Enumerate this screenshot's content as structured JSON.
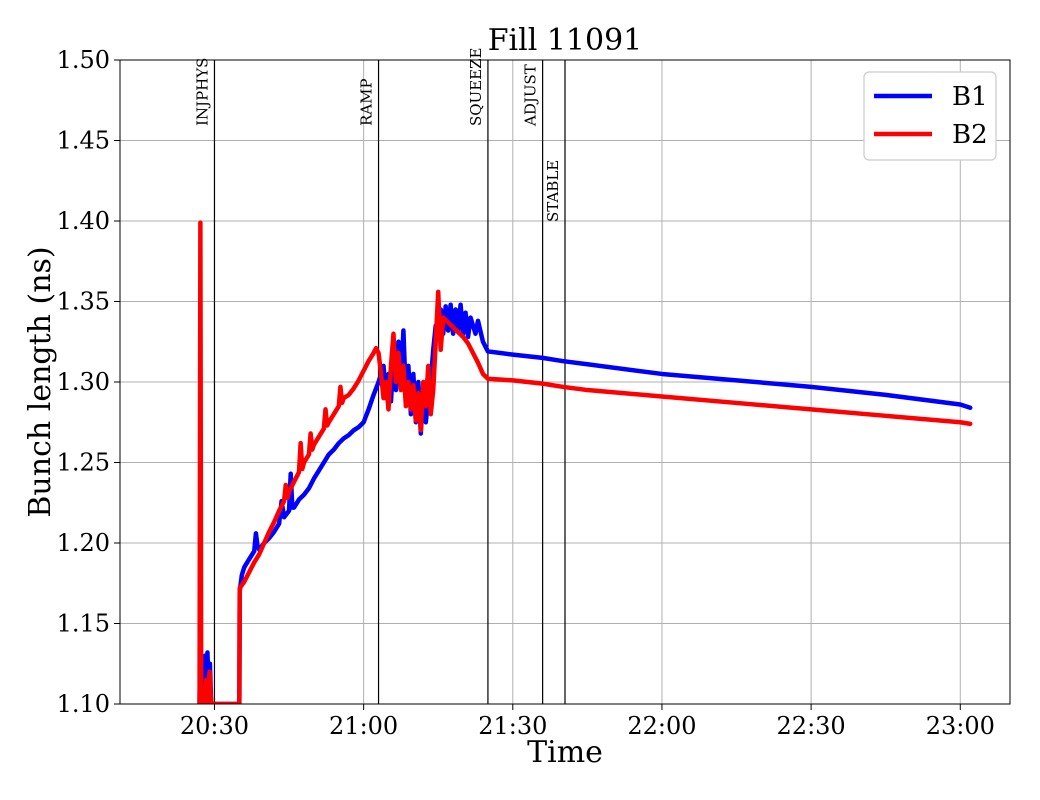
{
  "chart_data": {
    "type": "line",
    "title": "Fill 11091",
    "xlabel": "Time",
    "ylabel": "Bunch length (ns)",
    "ylim": [
      1.1,
      1.5
    ],
    "xlim": [
      "20:11",
      "23:10"
    ],
    "grid": true,
    "legend_position": "top-right",
    "x_ticks": [
      "20:30",
      "21:00",
      "21:30",
      "22:00",
      "22:30",
      "23:00"
    ],
    "y_ticks": [
      "1.10",
      "1.15",
      "1.20",
      "1.25",
      "1.30",
      "1.35",
      "1.40",
      "1.45",
      "1.50"
    ],
    "phase_markers": [
      {
        "label": "INJPHYS",
        "time": "20:30"
      },
      {
        "label": "RAMP",
        "time": "21:03"
      },
      {
        "label": "SQUEEZE",
        "time": "21:25"
      },
      {
        "label": "ADJUST",
        "time": "21:36"
      },
      {
        "label": "STABLE",
        "time": "21:40:30"
      }
    ],
    "series": [
      {
        "name": "B1",
        "color": "#0000ff",
        "points": [
          [
            "20:27:00",
            1.1
          ],
          [
            "20:27:05",
            1.12
          ],
          [
            "20:27:20",
            1.1
          ],
          [
            "20:27:35",
            1.125
          ],
          [
            "20:27:50",
            1.105
          ],
          [
            "20:28:05",
            1.13
          ],
          [
            "20:28:20",
            1.11
          ],
          [
            "20:28:35",
            1.132
          ],
          [
            "20:28:50",
            1.108
          ],
          [
            "20:29:05",
            1.125
          ],
          [
            "20:29:20",
            1.1
          ],
          [
            "20:29:30",
            1.1
          ],
          [
            "20:35:00",
            1.1
          ],
          [
            "20:35:05",
            1.17
          ],
          [
            "20:35:30",
            1.18
          ],
          [
            "20:36:00",
            1.185
          ],
          [
            "20:37:00",
            1.19
          ],
          [
            "20:38:00",
            1.195
          ],
          [
            "20:38:20",
            1.206
          ],
          [
            "20:38:40",
            1.198
          ],
          [
            "20:39:00",
            1.196
          ],
          [
            "20:40:00",
            1.2
          ],
          [
            "20:41:00",
            1.203
          ],
          [
            "20:42:00",
            1.207
          ],
          [
            "20:43:00",
            1.212
          ],
          [
            "20:43:30",
            1.226
          ],
          [
            "20:44:00",
            1.216
          ],
          [
            "20:45:00",
            1.22
          ],
          [
            "20:45:20",
            1.243
          ],
          [
            "20:45:40",
            1.222
          ],
          [
            "20:46:00",
            1.222
          ],
          [
            "20:47:00",
            1.227
          ],
          [
            "20:48:00",
            1.23
          ],
          [
            "20:49:00",
            1.234
          ],
          [
            "20:50:00",
            1.24
          ],
          [
            "20:51:00",
            1.245
          ],
          [
            "20:52:00",
            1.25
          ],
          [
            "20:53:00",
            1.255
          ],
          [
            "20:54:00",
            1.258
          ],
          [
            "20:55:00",
            1.262
          ],
          [
            "20:56:00",
            1.265
          ],
          [
            "20:57:00",
            1.267
          ],
          [
            "20:58:00",
            1.27
          ],
          [
            "20:59:00",
            1.272
          ],
          [
            "21:00:00",
            1.275
          ],
          [
            "21:01:00",
            1.283
          ],
          [
            "21:02:00",
            1.292
          ],
          [
            "21:03:00",
            1.3
          ],
          [
            "21:04:00",
            1.31
          ],
          [
            "21:04:30",
            1.29
          ],
          [
            "21:05:00",
            1.305
          ],
          [
            "21:05:30",
            1.288
          ],
          [
            "21:06:00",
            1.315
          ],
          [
            "21:06:30",
            1.295
          ],
          [
            "21:07:00",
            1.325
          ],
          [
            "21:07:30",
            1.298
          ],
          [
            "21:08:00",
            1.332
          ],
          [
            "21:08:30",
            1.29
          ],
          [
            "21:09:00",
            1.31
          ],
          [
            "21:09:30",
            1.28
          ],
          [
            "21:10:00",
            1.305
          ],
          [
            "21:10:30",
            1.275
          ],
          [
            "21:11:00",
            1.3
          ],
          [
            "21:11:30",
            1.268
          ],
          [
            "21:12:00",
            1.295
          ],
          [
            "21:12:30",
            1.275
          ],
          [
            "21:13:00",
            1.29
          ],
          [
            "21:13:30",
            1.3
          ],
          [
            "21:14:00",
            1.32
          ],
          [
            "21:14:30",
            1.335
          ],
          [
            "21:15:00",
            1.328
          ],
          [
            "21:15:30",
            1.345
          ],
          [
            "21:16:00",
            1.33
          ],
          [
            "21:16:30",
            1.347
          ],
          [
            "21:17:00",
            1.332
          ],
          [
            "21:17:30",
            1.348
          ],
          [
            "21:18:00",
            1.33
          ],
          [
            "21:18:30",
            1.345
          ],
          [
            "21:19:00",
            1.332
          ],
          [
            "21:19:30",
            1.348
          ],
          [
            "21:20:00",
            1.33
          ],
          [
            "21:20:30",
            1.343
          ],
          [
            "21:21:00",
            1.328
          ],
          [
            "21:21:30",
            1.34
          ],
          [
            "21:22:00",
            1.335
          ],
          [
            "21:22:30",
            1.33
          ],
          [
            "21:23:00",
            1.338
          ],
          [
            "21:24:00",
            1.325
          ],
          [
            "21:25:00",
            1.319
          ],
          [
            "21:30:00",
            1.317
          ],
          [
            "21:36:00",
            1.315
          ],
          [
            "21:40:00",
            1.313
          ],
          [
            "21:45:00",
            1.311
          ],
          [
            "22:00:00",
            1.305
          ],
          [
            "22:15:00",
            1.301
          ],
          [
            "22:30:00",
            1.297
          ],
          [
            "22:45:00",
            1.292
          ],
          [
            "23:00:00",
            1.286
          ],
          [
            "23:02:00",
            1.284
          ]
        ]
      },
      {
        "name": "B2",
        "color": "#ff0000",
        "points": [
          [
            "20:27:00",
            1.1
          ],
          [
            "20:27:10",
            1.399
          ],
          [
            "20:27:20",
            1.1
          ],
          [
            "20:27:40",
            1.11
          ],
          [
            "20:28:00",
            1.1
          ],
          [
            "20:28:20",
            1.115
          ],
          [
            "20:28:40",
            1.1
          ],
          [
            "20:29:00",
            1.12
          ],
          [
            "20:29:20",
            1.1
          ],
          [
            "20:29:30",
            1.1
          ],
          [
            "20:35:00",
            1.1
          ],
          [
            "20:35:05",
            1.172
          ],
          [
            "20:36:00",
            1.176
          ],
          [
            "20:37:00",
            1.182
          ],
          [
            "20:38:00",
            1.188
          ],
          [
            "20:39:00",
            1.193
          ],
          [
            "20:40:00",
            1.2
          ],
          [
            "20:41:00",
            1.207
          ],
          [
            "20:42:00",
            1.213
          ],
          [
            "20:43:00",
            1.22
          ],
          [
            "20:44:00",
            1.226
          ],
          [
            "20:44:20",
            1.236
          ],
          [
            "20:44:40",
            1.228
          ],
          [
            "20:45:00",
            1.232
          ],
          [
            "20:46:00",
            1.238
          ],
          [
            "20:47:00",
            1.244
          ],
          [
            "20:47:20",
            1.262
          ],
          [
            "20:47:40",
            1.246
          ],
          [
            "20:48:00",
            1.25
          ],
          [
            "20:49:00",
            1.255
          ],
          [
            "20:49:20",
            1.268
          ],
          [
            "20:49:40",
            1.258
          ],
          [
            "20:50:00",
            1.261
          ],
          [
            "20:51:00",
            1.266
          ],
          [
            "20:52:00",
            1.271
          ],
          [
            "20:52:20",
            1.283
          ],
          [
            "20:52:40",
            1.273
          ],
          [
            "20:53:00",
            1.275
          ],
          [
            "20:54:00",
            1.28
          ],
          [
            "20:55:00",
            1.285
          ],
          [
            "20:55:20",
            1.297
          ],
          [
            "20:55:40",
            1.287
          ],
          [
            "20:56:00",
            1.29
          ],
          [
            "20:57:00",
            1.292
          ],
          [
            "20:58:00",
            1.296
          ],
          [
            "20:59:00",
            1.301
          ],
          [
            "21:00:00",
            1.307
          ],
          [
            "21:01:00",
            1.313
          ],
          [
            "21:02:00",
            1.318
          ],
          [
            "21:02:30",
            1.321
          ],
          [
            "21:03:00",
            1.318
          ],
          [
            "21:03:30",
            1.305
          ],
          [
            "21:04:00",
            1.29
          ],
          [
            "21:04:30",
            1.3
          ],
          [
            "21:05:00",
            1.283
          ],
          [
            "21:05:30",
            1.31
          ],
          [
            "21:06:00",
            1.33
          ],
          [
            "21:06:30",
            1.3
          ],
          [
            "21:07:00",
            1.318
          ],
          [
            "21:07:30",
            1.295
          ],
          [
            "21:08:00",
            1.31
          ],
          [
            "21:08:30",
            1.285
          ],
          [
            "21:09:00",
            1.3
          ],
          [
            "21:09:30",
            1.283
          ],
          [
            "21:10:00",
            1.298
          ],
          [
            "21:10:30",
            1.276
          ],
          [
            "21:11:00",
            1.293
          ],
          [
            "21:11:30",
            1.27
          ],
          [
            "21:12:00",
            1.3
          ],
          [
            "21:12:30",
            1.285
          ],
          [
            "21:13:00",
            1.31
          ],
          [
            "21:13:30",
            1.28
          ],
          [
            "21:14:00",
            1.295
          ],
          [
            "21:14:30",
            1.325
          ],
          [
            "21:15:00",
            1.356
          ],
          [
            "21:15:30",
            1.32
          ],
          [
            "21:16:00",
            1.34
          ],
          [
            "21:17:00",
            1.337
          ],
          [
            "21:18:00",
            1.334
          ],
          [
            "21:19:00",
            1.331
          ],
          [
            "21:20:00",
            1.328
          ],
          [
            "21:21:00",
            1.324
          ],
          [
            "21:22:00",
            1.318
          ],
          [
            "21:23:00",
            1.312
          ],
          [
            "21:24:00",
            1.305
          ],
          [
            "21:25:00",
            1.302
          ],
          [
            "21:30:00",
            1.301
          ],
          [
            "21:36:00",
            1.299
          ],
          [
            "21:40:00",
            1.297
          ],
          [
            "21:45:00",
            1.295
          ],
          [
            "22:00:00",
            1.291
          ],
          [
            "22:15:00",
            1.287
          ],
          [
            "22:30:00",
            1.283
          ],
          [
            "22:45:00",
            1.279
          ],
          [
            "23:00:00",
            1.275
          ],
          [
            "23:02:00",
            1.274
          ]
        ]
      }
    ]
  }
}
